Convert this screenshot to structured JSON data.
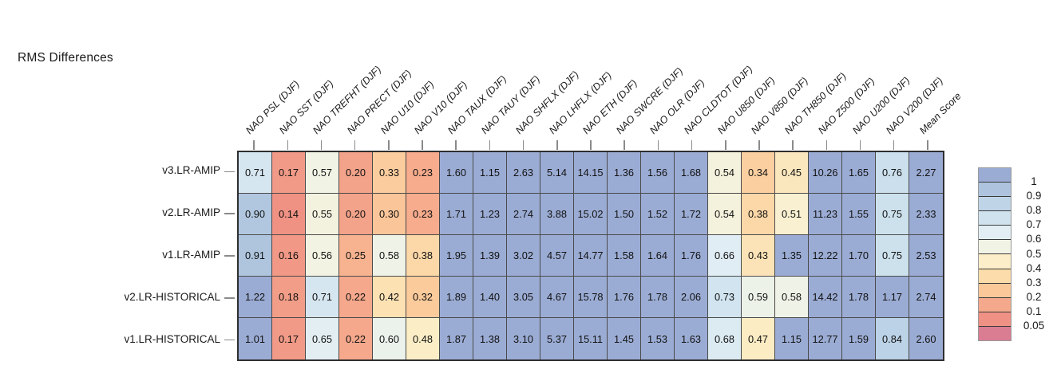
{
  "chart_data": {
    "type": "heatmap",
    "title": "RMS Differences",
    "legend_position": "right",
    "cell_value_format": "2-decimals",
    "columns": [
      "NAO PSL (DJF)",
      "NAO SST (DJF)",
      "NAO TREFHT (DJF)",
      "NAO PRECT (DJF)",
      "NAO U10 (DJF)",
      "NAO V10 (DJF)",
      "NAO TAUX (DJF)",
      "NAO TAUY (DJF)",
      "NAO SHFLX (DJF)",
      "NAO LHFLX (DJF)",
      "NAO ETH (DJF)",
      "NAO SWCRE (DJF)",
      "NAO OLR (DJF)",
      "NAO CLDTOT (DJF)",
      "NAO U850 (DJF)",
      "NAO V850 (DJF)",
      "NAO TH850 (DJF)",
      "NAO Z500 (DJF)",
      "NAO U200 (DJF)",
      "NAO V200 (DJF)",
      "Mean Score"
    ],
    "series": [
      {
        "name": "v3.LR-AMIP",
        "values": [
          0.71,
          0.17,
          0.57,
          0.2,
          0.33,
          0.23,
          1.6,
          1.15,
          2.63,
          5.14,
          14.15,
          1.36,
          1.56,
          1.68,
          0.54,
          0.34,
          0.45,
          10.26,
          1.65,
          0.76,
          2.27
        ]
      },
      {
        "name": "v2.LR-AMIP",
        "values": [
          0.9,
          0.14,
          0.55,
          0.2,
          0.3,
          0.23,
          1.71,
          1.23,
          2.74,
          3.88,
          15.02,
          1.5,
          1.52,
          1.72,
          0.54,
          0.38,
          0.51,
          11.23,
          1.55,
          0.75,
          2.33
        ]
      },
      {
        "name": "v1.LR-AMIP",
        "values": [
          0.91,
          0.16,
          0.56,
          0.25,
          0.58,
          0.38,
          1.95,
          1.39,
          3.02,
          4.57,
          14.77,
          1.58,
          1.64,
          1.76,
          0.66,
          0.43,
          1.35,
          12.22,
          1.7,
          0.75,
          2.53
        ]
      },
      {
        "name": "v2.LR-HISTORICAL",
        "values": [
          1.22,
          0.18,
          0.71,
          0.22,
          0.42,
          0.32,
          1.89,
          1.4,
          3.05,
          4.67,
          15.78,
          1.76,
          1.78,
          2.06,
          0.73,
          0.59,
          0.58,
          14.42,
          1.78,
          1.17,
          2.74
        ]
      },
      {
        "name": "v1.LR-HISTORICAL",
        "values": [
          1.01,
          0.17,
          0.65,
          0.22,
          0.6,
          0.48,
          1.87,
          1.38,
          3.1,
          5.37,
          15.11,
          1.45,
          1.53,
          1.63,
          0.68,
          0.47,
          1.15,
          12.77,
          1.59,
          0.84,
          2.6
        ]
      }
    ],
    "colorbar": {
      "tick_labels": [
        "1",
        "0.9",
        "0.8",
        "0.7",
        "0.6",
        "0.5",
        "0.4",
        "0.3",
        "0.2",
        "0.1",
        "0.05"
      ],
      "segment_colors_top_to_bottom": [
        "#9bacd4",
        "#aec4de",
        "#bfd4e7",
        "#cfe2ee",
        "#e2eef4",
        "#f1f3e5",
        "#fbeec8",
        "#fcdcab",
        "#fbc89a",
        "#f5a98c",
        "#ef9184",
        "#da7d92"
      ],
      "value_domain": [
        0.05,
        1
      ]
    }
  }
}
